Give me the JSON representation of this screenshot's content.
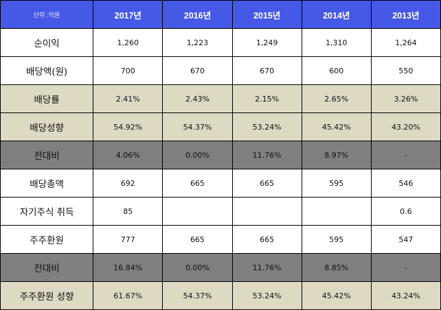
{
  "table": {
    "unit_label": "단위 :억원",
    "years": [
      "2017년",
      "2016년",
      "2015년",
      "2014년",
      "2013년"
    ],
    "rows": [
      {
        "label": "순이익",
        "style": "white",
        "values": [
          "1,260",
          "1,223",
          "1,249",
          "1,310",
          "1,264"
        ]
      },
      {
        "label": "배당액(원)",
        "style": "white",
        "values": [
          "700",
          "670",
          "670",
          "600",
          "550"
        ]
      },
      {
        "label": "배당률",
        "style": "beige",
        "values": [
          "2.41%",
          "2.43%",
          "2.15%",
          "2.65%",
          "3.26%"
        ]
      },
      {
        "label": "배당성향",
        "style": "beige",
        "values": [
          "54.92%",
          "54.37%",
          "53.24%",
          "45.42%",
          "43.20%"
        ]
      },
      {
        "label": "전대비",
        "style": "gray",
        "values": [
          "4.06%",
          "0.00%",
          "11.76%",
          "8.97%",
          "-"
        ]
      },
      {
        "label": "배당총액",
        "style": "white",
        "values": [
          "692",
          "665",
          "665",
          "595",
          "546"
        ]
      },
      {
        "label": "자기주식 취득",
        "style": "white",
        "values": [
          "85",
          "",
          "",
          "",
          "0.6"
        ]
      },
      {
        "label": "주주환원",
        "style": "white",
        "values": [
          "777",
          "665",
          "665",
          "595",
          "547"
        ]
      },
      {
        "label": "전대비",
        "style": "gray",
        "values": [
          "16.84%",
          "0.00%",
          "11.76%",
          "8.85%",
          "-"
        ]
      },
      {
        "label": "주주환원 성향",
        "style": "beige",
        "values": [
          "61.67%",
          "54.37%",
          "53.24%",
          "45.42%",
          "43.24%"
        ]
      }
    ]
  },
  "colors": {
    "header_bg": "#4658e6",
    "header_text": "#ffffff",
    "beige_row": "#ddd9c3",
    "gray_row": "#7f7f7f",
    "white_row": "#ffffff",
    "border": "#000000"
  }
}
